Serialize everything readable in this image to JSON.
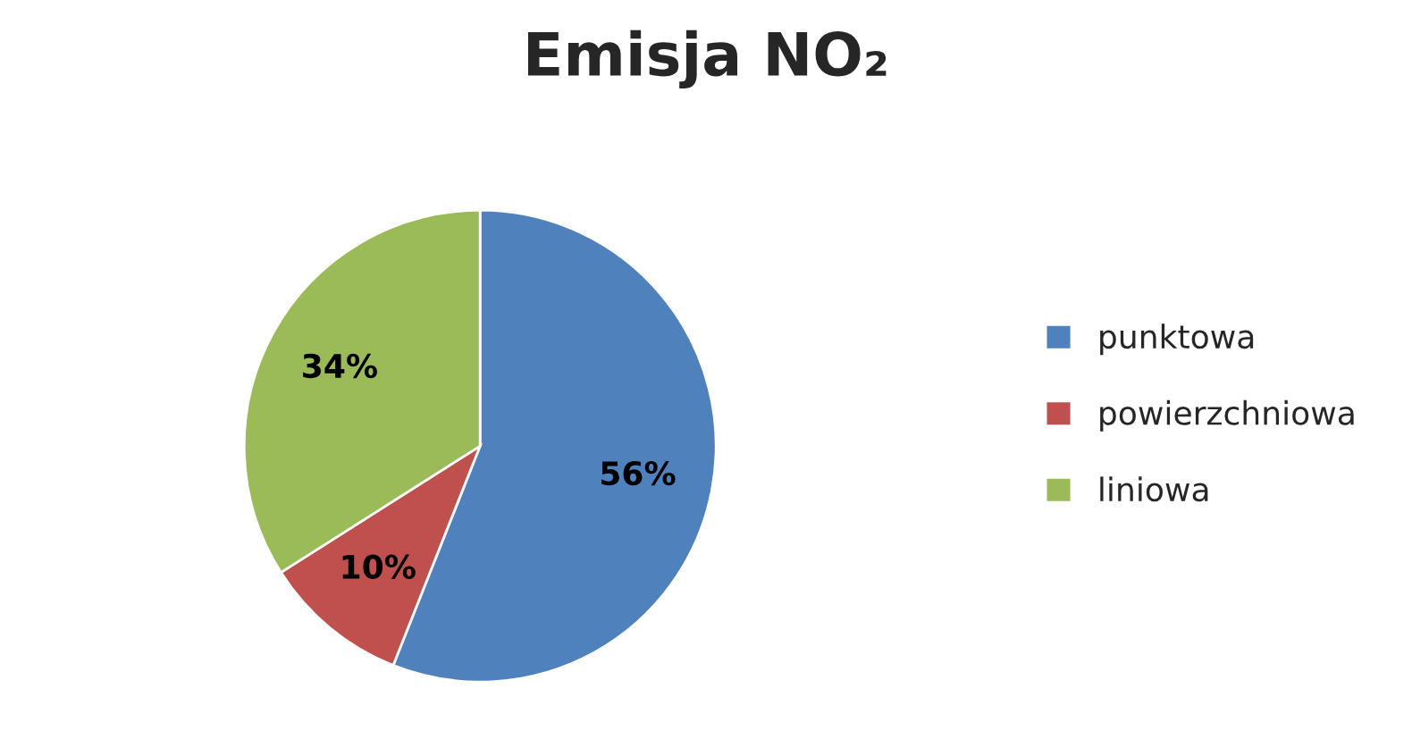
{
  "chart_data": {
    "type": "pie",
    "title": "Emisja NO₂",
    "categories": [
      "punktowa",
      "powierzchniowa",
      "liniowa"
    ],
    "values": [
      56,
      10,
      34
    ],
    "colors": [
      "#4f81bd",
      "#c0504d",
      "#9bbb59"
    ],
    "value_labels": [
      "56%",
      "10%",
      "34%"
    ],
    "legend": "right"
  }
}
